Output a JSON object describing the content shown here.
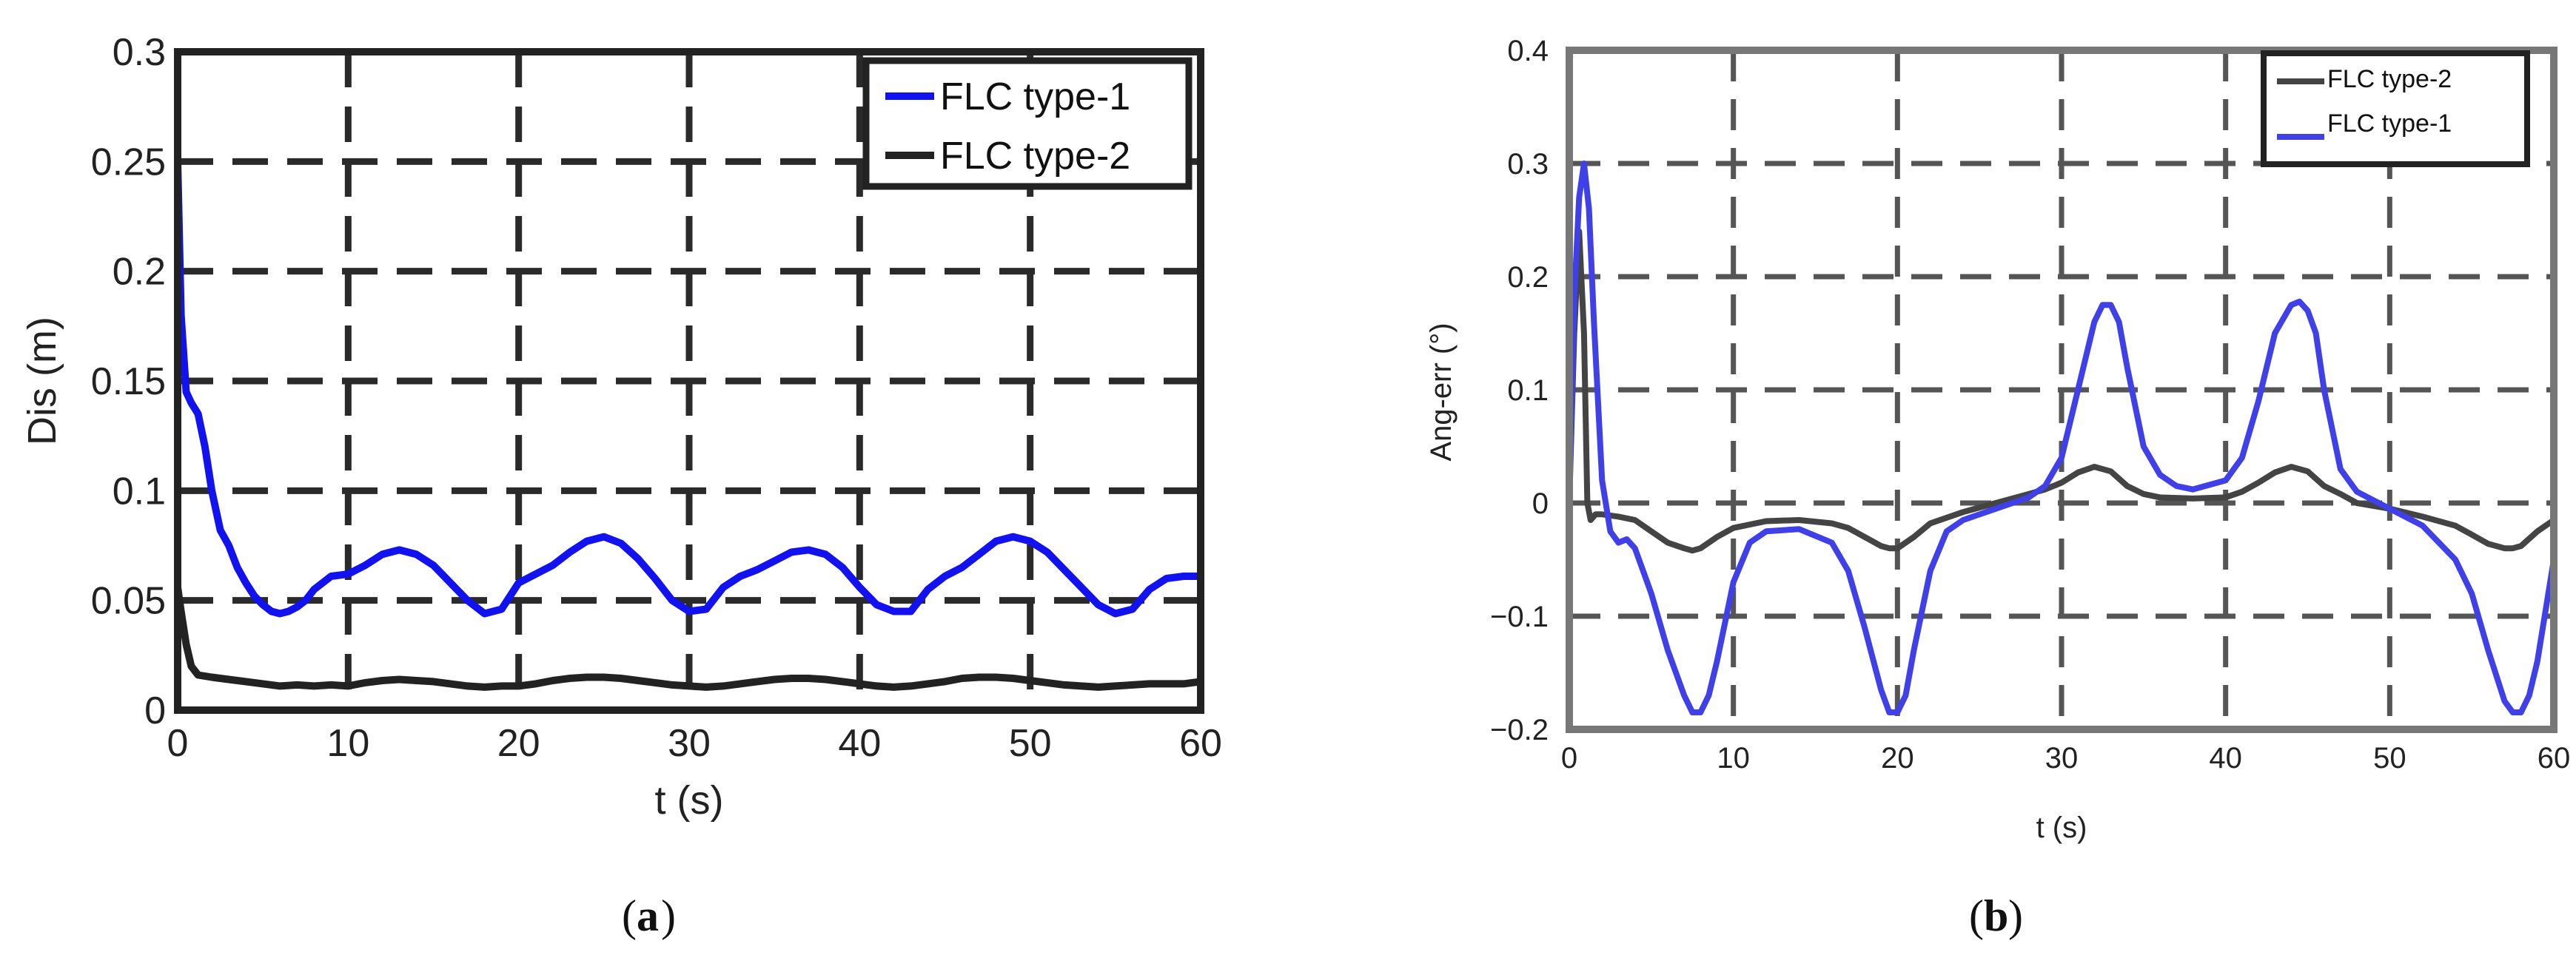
{
  "chart_data": [
    {
      "panel_label": "a",
      "type": "line",
      "xlabel": "t (s)",
      "ylabel": "Dis (m)",
      "xlim": [
        0,
        60
      ],
      "ylim": [
        0,
        0.3
      ],
      "xticks": [
        "0",
        "10",
        "20",
        "30",
        "40",
        "50",
        "60"
      ],
      "yticks": [
        "0",
        "0.05",
        "0.1",
        "0.15",
        "0.2",
        "0.25",
        "0.3"
      ],
      "grid": true,
      "legend_position": "top-right",
      "series": [
        {
          "name": "FLC type-1",
          "color": "#1212f0",
          "x": [
            0,
            0.2,
            0.5,
            0.8,
            1.2,
            1.6,
            2.0,
            2.5,
            3.0,
            3.5,
            4.0,
            4.5,
            5.0,
            5.5,
            6.0,
            6.5,
            7.0,
            7.5,
            8.0,
            8.5,
            9.0,
            10.0,
            11.0,
            12.0,
            13.0,
            14.0,
            15.0,
            16.0,
            17.0,
            18.0,
            19.0,
            20.0,
            21.0,
            22.0,
            23.0,
            24.0,
            25.0,
            26.0,
            27.0,
            28.0,
            29.0,
            30.0,
            31.0,
            32.0,
            33.0,
            34.0,
            35.0,
            36.0,
            37.0,
            38.0,
            39.0,
            40.0,
            41.0,
            42.0,
            43.0,
            44.0,
            45.0,
            46.0,
            47.0,
            48.0,
            49.0,
            50.0,
            51.0,
            52.0,
            53.0,
            54.0,
            55.0,
            56.0,
            57.0,
            58.0,
            59.0,
            60.0
          ],
          "values": [
            0.25,
            0.18,
            0.145,
            0.14,
            0.135,
            0.12,
            0.1,
            0.082,
            0.075,
            0.065,
            0.058,
            0.052,
            0.048,
            0.045,
            0.044,
            0.045,
            0.047,
            0.05,
            0.055,
            0.058,
            0.061,
            0.062,
            0.066,
            0.071,
            0.073,
            0.071,
            0.066,
            0.058,
            0.05,
            0.044,
            0.046,
            0.058,
            0.062,
            0.066,
            0.072,
            0.077,
            0.079,
            0.076,
            0.069,
            0.06,
            0.05,
            0.045,
            0.046,
            0.056,
            0.061,
            0.064,
            0.068,
            0.072,
            0.073,
            0.071,
            0.065,
            0.056,
            0.048,
            0.045,
            0.045,
            0.055,
            0.061,
            0.065,
            0.071,
            0.077,
            0.079,
            0.077,
            0.072,
            0.064,
            0.056,
            0.048,
            0.044,
            0.046,
            0.055,
            0.06,
            0.061,
            0.061
          ]
        },
        {
          "name": "FLC type-2",
          "color": "#222222",
          "x": [
            0,
            0.2,
            0.5,
            0.8,
            1.2,
            2.0,
            3.0,
            4.0,
            5.0,
            6.0,
            7.0,
            8.0,
            9.0,
            10.0,
            11.0,
            12.0,
            13.0,
            14.0,
            15.0,
            16.0,
            17.0,
            18.0,
            19.0,
            20.0,
            21.0,
            22.0,
            23.0,
            24.0,
            25.0,
            26.0,
            27.0,
            28.0,
            29.0,
            30.0,
            31.0,
            32.0,
            33.0,
            34.0,
            35.0,
            36.0,
            37.0,
            38.0,
            39.0,
            40.0,
            41.0,
            42.0,
            43.0,
            44.0,
            45.0,
            46.0,
            47.0,
            48.0,
            49.0,
            50.0,
            51.0,
            52.0,
            53.0,
            54.0,
            55.0,
            56.0,
            57.0,
            58.0,
            59.0,
            60.0
          ],
          "values": [
            0.056,
            0.045,
            0.03,
            0.02,
            0.016,
            0.015,
            0.014,
            0.013,
            0.012,
            0.011,
            0.0115,
            0.011,
            0.0115,
            0.011,
            0.0125,
            0.0135,
            0.014,
            0.0135,
            0.013,
            0.012,
            0.011,
            0.0105,
            0.011,
            0.011,
            0.012,
            0.0135,
            0.0145,
            0.015,
            0.015,
            0.0145,
            0.0135,
            0.0125,
            0.0115,
            0.011,
            0.0105,
            0.011,
            0.012,
            0.013,
            0.014,
            0.0145,
            0.0145,
            0.014,
            0.013,
            0.012,
            0.011,
            0.0105,
            0.011,
            0.012,
            0.013,
            0.0145,
            0.015,
            0.015,
            0.0145,
            0.0135,
            0.0125,
            0.0115,
            0.011,
            0.0105,
            0.011,
            0.0115,
            0.012,
            0.012,
            0.012,
            0.013
          ]
        }
      ]
    },
    {
      "panel_label": "b",
      "type": "line",
      "xlabel": "t (s)",
      "ylabel": "Ang-err (°)",
      "xlim": [
        0,
        60
      ],
      "ylim": [
        -0.2,
        0.4
      ],
      "xticks": [
        "0",
        "10",
        "20",
        "30",
        "40",
        "50",
        "60"
      ],
      "yticks": [
        "−0.2",
        "−0.1",
        "0",
        "0.1",
        "0.2",
        "0.3",
        "0.4"
      ],
      "grid": true,
      "legend_position": "top-right",
      "series": [
        {
          "name": "FLC type-2",
          "color": "#444444",
          "x": [
            0,
            0.3,
            0.6,
            0.9,
            1.1,
            1.3,
            1.6,
            2.0,
            3.0,
            4.0,
            5.0,
            6.0,
            7.0,
            7.5,
            8.0,
            9.0,
            10.0,
            12.0,
            14.0,
            16.0,
            17.0,
            18.0,
            19.0,
            19.5,
            20.0,
            21.0,
            22.0,
            24.0,
            26.0,
            28.0,
            29.0,
            30.0,
            31.0,
            32.0,
            33.0,
            34.0,
            35.0,
            36.0,
            38.0,
            40.0,
            41.0,
            42.0,
            43.0,
            44.0,
            45.0,
            46.0,
            47.0,
            48.0,
            50.0,
            52.0,
            54.0,
            55.0,
            56.0,
            57.0,
            57.5,
            58.0,
            59.0,
            60.0
          ],
          "values": [
            0.0,
            0.15,
            0.24,
            0.15,
            0.0,
            -0.015,
            -0.01,
            -0.01,
            -0.012,
            -0.015,
            -0.025,
            -0.035,
            -0.04,
            -0.042,
            -0.04,
            -0.03,
            -0.022,
            -0.016,
            -0.015,
            -0.018,
            -0.022,
            -0.03,
            -0.038,
            -0.04,
            -0.04,
            -0.03,
            -0.018,
            -0.008,
            0.0,
            0.008,
            0.012,
            0.018,
            0.027,
            0.032,
            0.028,
            0.015,
            0.008,
            0.005,
            0.004,
            0.005,
            0.01,
            0.018,
            0.027,
            0.032,
            0.028,
            0.015,
            0.008,
            0.0,
            -0.005,
            -0.012,
            -0.02,
            -0.028,
            -0.036,
            -0.04,
            -0.04,
            -0.038,
            -0.025,
            -0.015
          ]
        },
        {
          "name": "FLC type-1",
          "color": "#4040e8",
          "x": [
            0,
            0.3,
            0.6,
            0.9,
            1.2,
            1.5,
            2.0,
            2.5,
            3.0,
            3.5,
            4.0,
            5.0,
            6.0,
            7.0,
            7.5,
            8.0,
            8.5,
            9.0,
            10.0,
            11.0,
            12.0,
            14.0,
            16.0,
            17.0,
            18.0,
            19.0,
            19.5,
            20.0,
            20.5,
            21.0,
            22.0,
            23.0,
            24.0,
            26.0,
            28.0,
            29.0,
            30.0,
            31.0,
            32.0,
            32.5,
            33.0,
            33.5,
            34.0,
            35.0,
            36.0,
            37.0,
            38.0,
            40.0,
            41.0,
            42.0,
            43.0,
            44.0,
            44.5,
            45.0,
            45.5,
            46.0,
            47.0,
            48.0,
            50.0,
            52.0,
            54.0,
            55.0,
            56.0,
            57.0,
            57.5,
            58.0,
            58.5,
            59.0,
            60.0
          ],
          "values": [
            0.0,
            0.18,
            0.27,
            0.3,
            0.26,
            0.16,
            0.02,
            -0.025,
            -0.035,
            -0.032,
            -0.04,
            -0.08,
            -0.13,
            -0.17,
            -0.185,
            -0.185,
            -0.17,
            -0.14,
            -0.07,
            -0.035,
            -0.025,
            -0.023,
            -0.035,
            -0.06,
            -0.11,
            -0.165,
            -0.185,
            -0.185,
            -0.17,
            -0.13,
            -0.06,
            -0.025,
            -0.015,
            -0.005,
            0.005,
            0.015,
            0.04,
            0.1,
            0.16,
            0.175,
            0.175,
            0.16,
            0.12,
            0.05,
            0.025,
            0.015,
            0.012,
            0.02,
            0.04,
            0.09,
            0.15,
            0.175,
            0.178,
            0.17,
            0.15,
            0.1,
            0.03,
            0.01,
            -0.005,
            -0.02,
            -0.05,
            -0.08,
            -0.13,
            -0.175,
            -0.185,
            -0.185,
            -0.17,
            -0.14,
            -0.05
          ]
        }
      ]
    }
  ]
}
